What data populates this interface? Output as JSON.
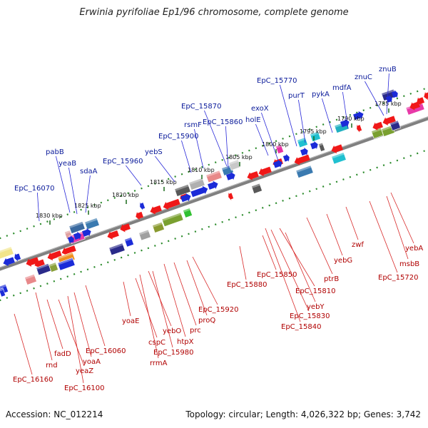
{
  "title": "Erwinia pyrifoliae Ep1/96 chromosome, complete genome",
  "accession": "Accession: NC_012214",
  "summary": "Topology: circular; Length: 4,026,322 bp; Genes: 3,742",
  "colors": {
    "forward_label": "#0a1a9a",
    "reverse_label": "#b00000",
    "backbone": "#808080",
    "track_dots": "#2a8a2a"
  },
  "ticks": [
    "1830 kbp",
    "1825 kbp",
    "1820 kbp",
    "1815 kbp",
    "1810 kbp",
    "1805 kbp",
    "1800 kbp",
    "1795 kbp",
    "1790 kbp",
    "1785 kbp"
  ],
  "top_labels": [
    "EpC_16070",
    "pabB",
    "yeaB",
    "sdaA",
    "EpC_15960",
    "yebS",
    "EpC_15900",
    "rsmF",
    "EpC_15870",
    "EpC_15860",
    "holE",
    "exoX",
    "EpC_15770",
    "purT",
    "pykA",
    "mdfA",
    "znuC",
    "znuB"
  ],
  "bottom_labels": [
    "EpC_16160",
    "rnd",
    "fadD",
    "yeaZ",
    "EpC_16100",
    "yoaA",
    "EpC_16060",
    "yoaE",
    "cspC",
    "rrmA",
    "yebO",
    "EpC_15980",
    "htpX",
    "prc",
    "proQ",
    "EpC_15920",
    "EpC_15880",
    "EpC_15850",
    "yebY",
    "EpC_15810",
    "EpC_15830",
    "EpC_15840",
    "ptrB",
    "yebG",
    "zwf",
    "EpC_15720",
    "msbB",
    "yebA"
  ]
}
